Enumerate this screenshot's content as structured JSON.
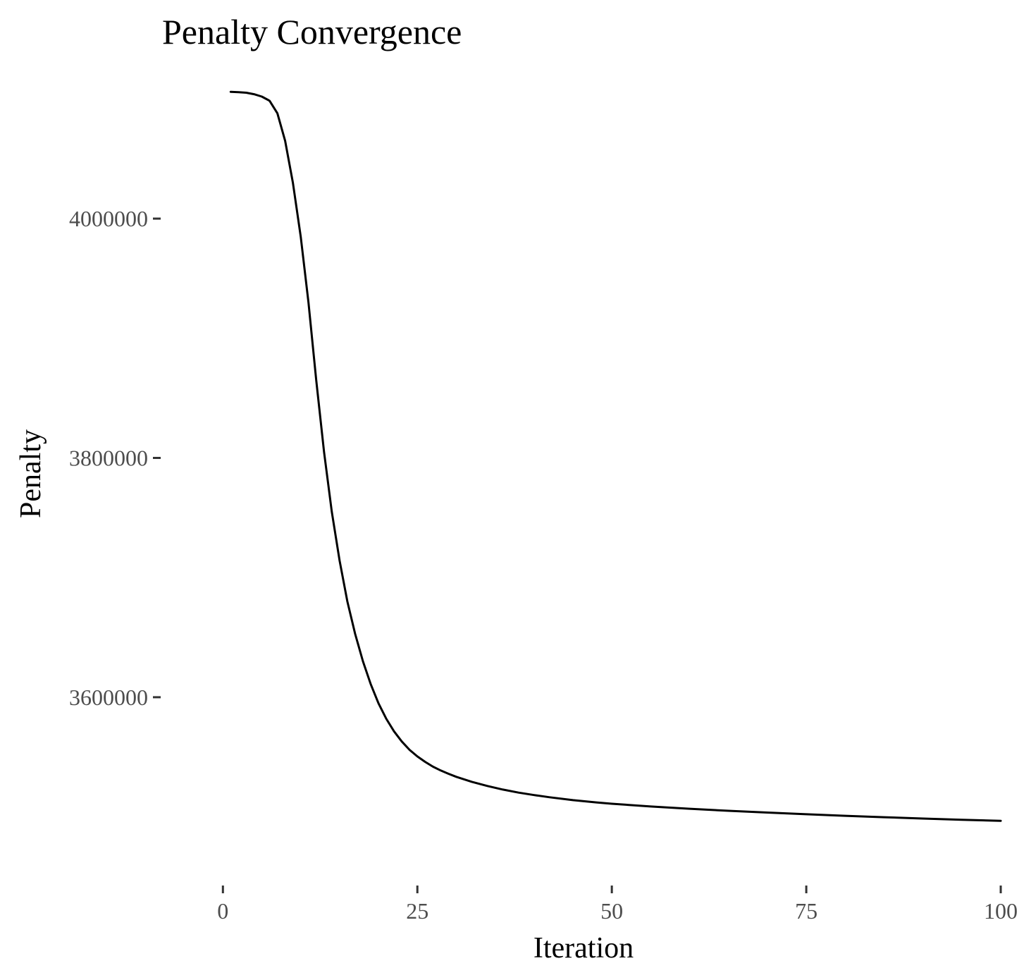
{
  "chart_data": {
    "type": "line",
    "title": "Penalty Convergence",
    "xlabel": "Iteration",
    "ylabel": "Penalty",
    "xlim": [
      -8,
      100
    ],
    "ylim": [
      3455000,
      4112000
    ],
    "x_ticks": [
      0,
      25,
      50,
      75,
      100
    ],
    "y_ticks": [
      3600000,
      3800000,
      4000000
    ],
    "x_tick_labels": [
      "0",
      "25",
      "50",
      "75",
      "100"
    ],
    "y_tick_labels": [
      "3600000",
      "3800000",
      "4000000"
    ],
    "grid": false,
    "legend": "none",
    "line_color": "#000000",
    "series": [
      {
        "x": [
          1,
          2,
          3,
          4,
          5,
          6,
          7,
          8,
          9,
          10,
          11,
          12,
          13,
          14,
          15,
          16,
          17,
          18,
          19,
          20,
          21,
          22,
          23,
          24,
          25,
          26,
          27,
          28,
          29,
          30,
          32,
          34,
          36,
          38,
          40,
          42,
          45,
          48,
          50,
          55,
          60,
          65,
          70,
          75,
          80,
          85,
          90,
          95,
          100
        ],
        "values": [
          4106000,
          4105700,
          4105200,
          4104000,
          4102000,
          4098500,
          4088000,
          4065000,
          4030000,
          3985000,
          3930000,
          3865000,
          3805000,
          3755000,
          3714000,
          3680000,
          3653000,
          3630000,
          3611000,
          3595000,
          3582000,
          3571500,
          3563000,
          3556000,
          3550500,
          3546000,
          3542000,
          3538800,
          3536000,
          3533500,
          3529300,
          3525800,
          3522800,
          3520300,
          3518200,
          3516400,
          3514000,
          3512100,
          3511000,
          3508700,
          3506800,
          3505100,
          3503600,
          3502200,
          3500900,
          3499700,
          3498600,
          3497600,
          3496700
        ]
      }
    ]
  }
}
